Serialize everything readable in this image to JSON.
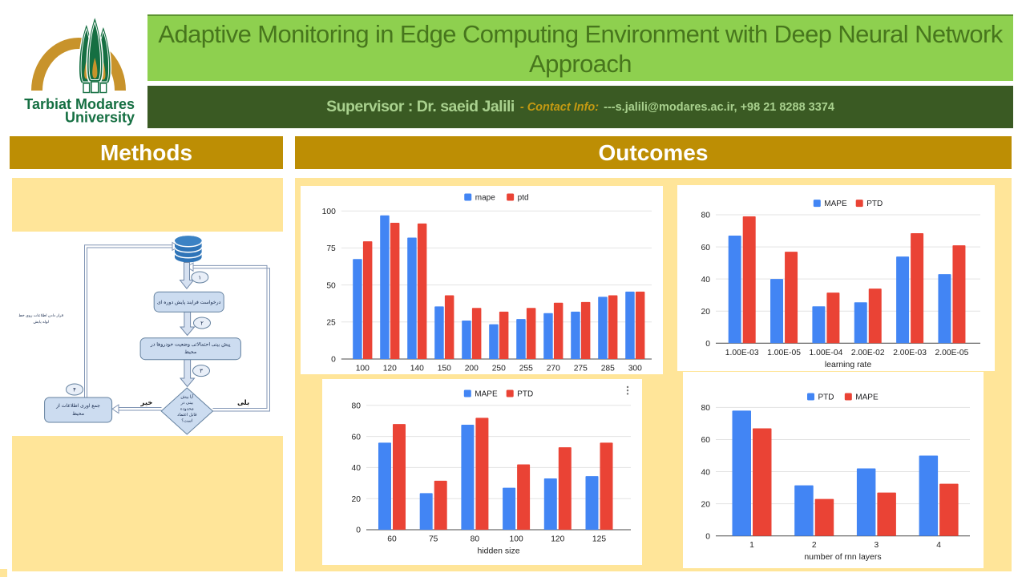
{
  "logo": {
    "line1": "Tarbiat Modares",
    "line2": "University"
  },
  "header": {
    "title": "Adaptive Monitoring in Edge Computing Environment with Deep Neural Network Approach",
    "supervisor": "Supervisor : Dr. saeid Jalili",
    "contact_label": "- Contact Info:",
    "contact_value": "---s.jalili@modares.ac.ir, +98 21 8288 3374"
  },
  "sections": {
    "methods": "Methods",
    "outcomes": "Outcomes"
  },
  "flowchart": {
    "step1": "۱",
    "step2": "۲",
    "step3": "۳",
    "step4": "۴",
    "box1": "درخواست فرایند پایش دوره ای",
    "box2_line1": "پیش بینی احتمالاتی وضعیت خودروها در",
    "box2_line2": "محیط",
    "diamond_line1": "آیا پیش",
    "diamond_line2": "بینی در",
    "diamond_line3": "محدوده",
    "diamond_line4": "قابل اعتماد",
    "diamond_line5": "است؟",
    "box4_line1": "جمع اوری اطلاعات از",
    "box4_line2": "محیط",
    "no_label": "خیر",
    "yes_label": "بلی",
    "caption_line1": "قرار دادن اطلاعات روی خط",
    "caption_line2": "لوله پایش"
  },
  "colors": {
    "title_bg": "#8ed04f",
    "title_text": "#47761d",
    "dark_green": "#3a5a23",
    "light_green_text": "#a9d18e",
    "gold_text": "#c49a12",
    "section_gold": "#bd8e04",
    "light_yellow": "#ffe599",
    "series_blue": "#4285f4",
    "series_red": "#ea4335"
  },
  "chart_data": [
    {
      "type": "bar",
      "categories": [
        "100",
        "120",
        "140",
        "150",
        "200",
        "250",
        "255",
        "270",
        "275",
        "285",
        "300"
      ],
      "series": [
        {
          "name": "mape",
          "color": "#4285f4",
          "values": [
            67.5,
            97,
            82,
            35.5,
            26,
            23.5,
            27,
            31,
            32,
            42,
            45.5
          ]
        },
        {
          "name": "ptd",
          "color": "#ea4335",
          "values": [
            79.5,
            92,
            91.5,
            43,
            34.5,
            32,
            34.5,
            38,
            38.5,
            43,
            45.5
          ]
        }
      ],
      "xlabel": "",
      "ylim": [
        0,
        100
      ],
      "yticks": [
        0,
        25,
        50,
        75,
        100
      ],
      "legend_position": "top",
      "grid": true
    },
    {
      "type": "bar",
      "categories": [
        "1.00E-03",
        "1.00E-05",
        "1.00E-04",
        "2.00E-02",
        "2.00E-03",
        "2.00E-05"
      ],
      "series": [
        {
          "name": "MAPE",
          "color": "#4285f4",
          "values": [
            67,
            40,
            23,
            25.5,
            54,
            43
          ]
        },
        {
          "name": "PTD",
          "color": "#ea4335",
          "values": [
            79,
            57,
            31.5,
            34,
            68.5,
            61
          ]
        }
      ],
      "xlabel": "learning rate",
      "ylim": [
        0,
        80
      ],
      "yticks": [
        0,
        20,
        40,
        60,
        80
      ],
      "legend_position": "top",
      "grid": true
    },
    {
      "type": "bar",
      "categories": [
        "60",
        "75",
        "80",
        "100",
        "120",
        "125"
      ],
      "series": [
        {
          "name": "MAPE",
          "color": "#4285f4",
          "values": [
            56,
            23.5,
            67.5,
            27,
            33,
            34.5
          ]
        },
        {
          "name": "PTD",
          "color": "#ea4335",
          "values": [
            68,
            31.5,
            72,
            42,
            53,
            56
          ]
        }
      ],
      "xlabel": "hidden size",
      "ylim": [
        0,
        80
      ],
      "yticks": [
        0,
        20,
        40,
        60,
        80
      ],
      "legend_position": "top",
      "menu_icon": "kebab-menu-icon",
      "grid": true
    },
    {
      "type": "bar",
      "categories": [
        "1",
        "2",
        "3",
        "4"
      ],
      "series": [
        {
          "name": "PTD",
          "color": "#4285f4",
          "values": [
            78,
            31.5,
            42,
            50
          ]
        },
        {
          "name": "MAPE",
          "color": "#ea4335",
          "values": [
            67,
            23,
            27,
            32.5
          ]
        }
      ],
      "xlabel": "number of rnn layers",
      "ylim": [
        0,
        80
      ],
      "yticks": [
        0,
        20,
        40,
        60,
        80
      ],
      "legend_position": "top",
      "grid": true
    }
  ]
}
